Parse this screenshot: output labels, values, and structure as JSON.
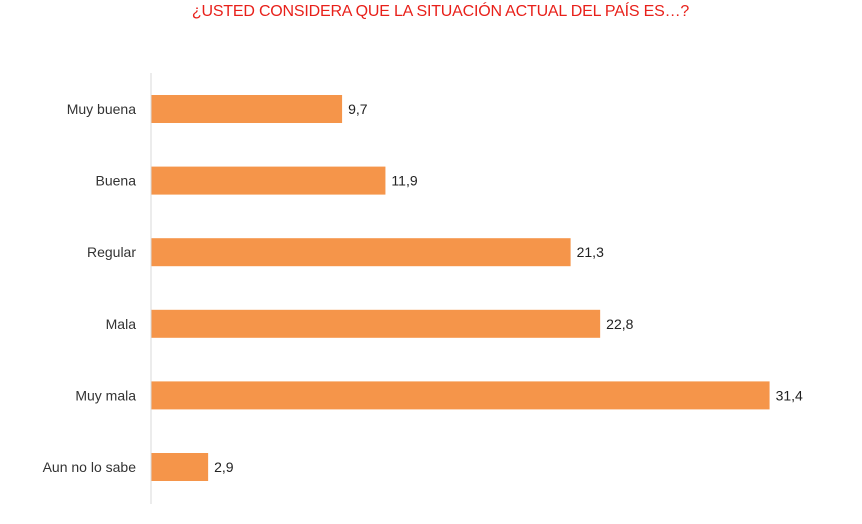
{
  "chart_data": {
    "type": "bar",
    "orientation": "horizontal",
    "title": "¿USTED CONSIDERA QUE LA SITUACIÓN ACTUAL DEL PAÍS ES…?",
    "categories": [
      "Muy buena",
      "Buena",
      "Regular",
      "Mala",
      "Muy mala",
      "Aun no lo sabe"
    ],
    "values": [
      9.7,
      11.9,
      21.3,
      22.8,
      31.4,
      2.9
    ],
    "value_labels": [
      "9,7",
      "11,9",
      "21,3",
      "22,8",
      "31,4",
      "2,9"
    ],
    "xlabel": "",
    "ylabel": "",
    "xlim": [
      0,
      31.4
    ],
    "grid": false,
    "legend": "none",
    "colors": {
      "bar": "#f5954a",
      "title": "#e8201a",
      "axis": "#d9d9d9"
    }
  }
}
